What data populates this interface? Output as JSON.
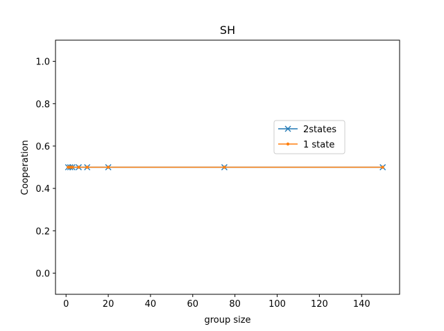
{
  "chart_data": {
    "type": "line",
    "title": "SH",
    "xlabel": "group size",
    "ylabel": "Cooperation",
    "xlim": [
      -5,
      158
    ],
    "ylim": [
      -0.1,
      1.1
    ],
    "xticks": [
      0,
      20,
      40,
      60,
      80,
      100,
      120,
      140
    ],
    "yticks": [
      0.0,
      0.2,
      0.4,
      0.6,
      0.8,
      1.0
    ],
    "xtick_labels": [
      "0",
      "20",
      "40",
      "60",
      "80",
      "100",
      "120",
      "140"
    ],
    "ytick_labels": [
      "0.0",
      "0.2",
      "0.4",
      "0.6",
      "0.8",
      "1.0"
    ],
    "legend_position": "center-right",
    "series": [
      {
        "name": "2states",
        "color": "#1f77b4",
        "marker": "x",
        "x": [
          1,
          2,
          3,
          6,
          10,
          20,
          75,
          150
        ],
        "y": [
          0.5,
          0.5,
          0.5,
          0.5,
          0.5,
          0.5,
          0.5,
          0.5
        ]
      },
      {
        "name": "1 state",
        "color": "#ff7f0e",
        "marker": "dot",
        "x": [
          1,
          2,
          3,
          6,
          10,
          20,
          75,
          150
        ],
        "y": [
          0.5,
          0.5,
          0.5,
          0.5,
          0.5,
          0.5,
          0.5,
          0.5
        ]
      }
    ]
  }
}
